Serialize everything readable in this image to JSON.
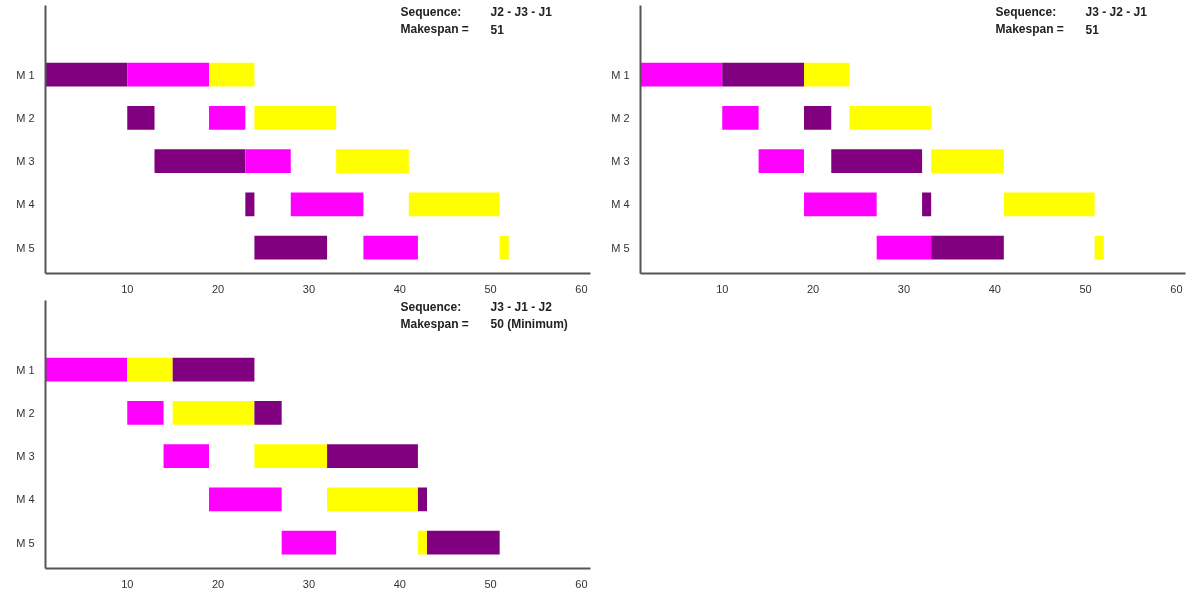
{
  "chart_data": [
    {
      "type": "bar",
      "orientation": "horizontal",
      "categories": [
        "M 1",
        "M 2",
        "M 3",
        "M 4",
        "M 5"
      ],
      "xlim": [
        1,
        61
      ],
      "xticks": [
        10,
        20,
        30,
        40,
        50,
        60
      ],
      "grid": false,
      "annotations": [
        "Sequence:",
        "J2 - J3 - J1",
        "Makespan =",
        "51"
      ],
      "series": [
        {
          "color": "#800080",
          "base": [
            1,
            10,
            13,
            23,
            24
          ],
          "values": [
            9,
            3,
            10,
            1,
            8
          ]
        },
        {
          "color": "#ff00ff",
          "base": [
            10,
            19,
            23,
            28,
            36
          ],
          "values": [
            9,
            4,
            5,
            8,
            6
          ]
        },
        {
          "color": "#ffff00",
          "base": [
            19,
            24,
            33,
            41,
            51
          ],
          "values": [
            5,
            9,
            8,
            10,
            1
          ]
        }
      ]
    },
    {
      "type": "bar",
      "orientation": "horizontal",
      "categories": [
        "M 1",
        "M 2",
        "M 3",
        "M 4",
        "M 5"
      ],
      "xlim": [
        1,
        61
      ],
      "xticks": [
        10,
        20,
        30,
        40,
        50,
        60
      ],
      "grid": false,
      "annotations": [
        "Sequence:",
        "J3 - J2 - J1",
        "Makespan =",
        "51"
      ],
      "series": [
        {
          "color": "#ff00ff",
          "base": [
            1,
            10,
            14,
            19,
            27
          ],
          "values": [
            9,
            4,
            5,
            8,
            6
          ]
        },
        {
          "color": "#800080",
          "base": [
            10,
            19,
            22,
            32,
            33
          ],
          "values": [
            9,
            3,
            10,
            1,
            8
          ]
        },
        {
          "color": "#ffff00",
          "base": [
            19,
            24,
            33,
            41,
            51
          ],
          "values": [
            5,
            9,
            8,
            10,
            1
          ]
        }
      ]
    },
    {
      "type": "bar",
      "orientation": "horizontal",
      "categories": [
        "M 1",
        "M 2",
        "M 3",
        "M 4",
        "M 5"
      ],
      "xlim": [
        1,
        61
      ],
      "xticks": [
        10,
        20,
        30,
        40,
        50,
        60
      ],
      "grid": false,
      "annotations": [
        "Sequence:",
        "J3 - J1 - J2",
        "Makespan =",
        "50 (Minimum)"
      ],
      "series": [
        {
          "color": "#ff00ff",
          "base": [
            1,
            10,
            14,
            19,
            27
          ],
          "values": [
            9,
            4,
            5,
            8,
            6
          ]
        },
        {
          "color": "#ffff00",
          "base": [
            10,
            15,
            24,
            32,
            42
          ],
          "values": [
            5,
            9,
            8,
            10,
            1
          ]
        },
        {
          "color": "#800080",
          "base": [
            15,
            24,
            32,
            42,
            43
          ],
          "values": [
            9,
            3,
            10,
            1,
            8
          ]
        }
      ]
    }
  ]
}
